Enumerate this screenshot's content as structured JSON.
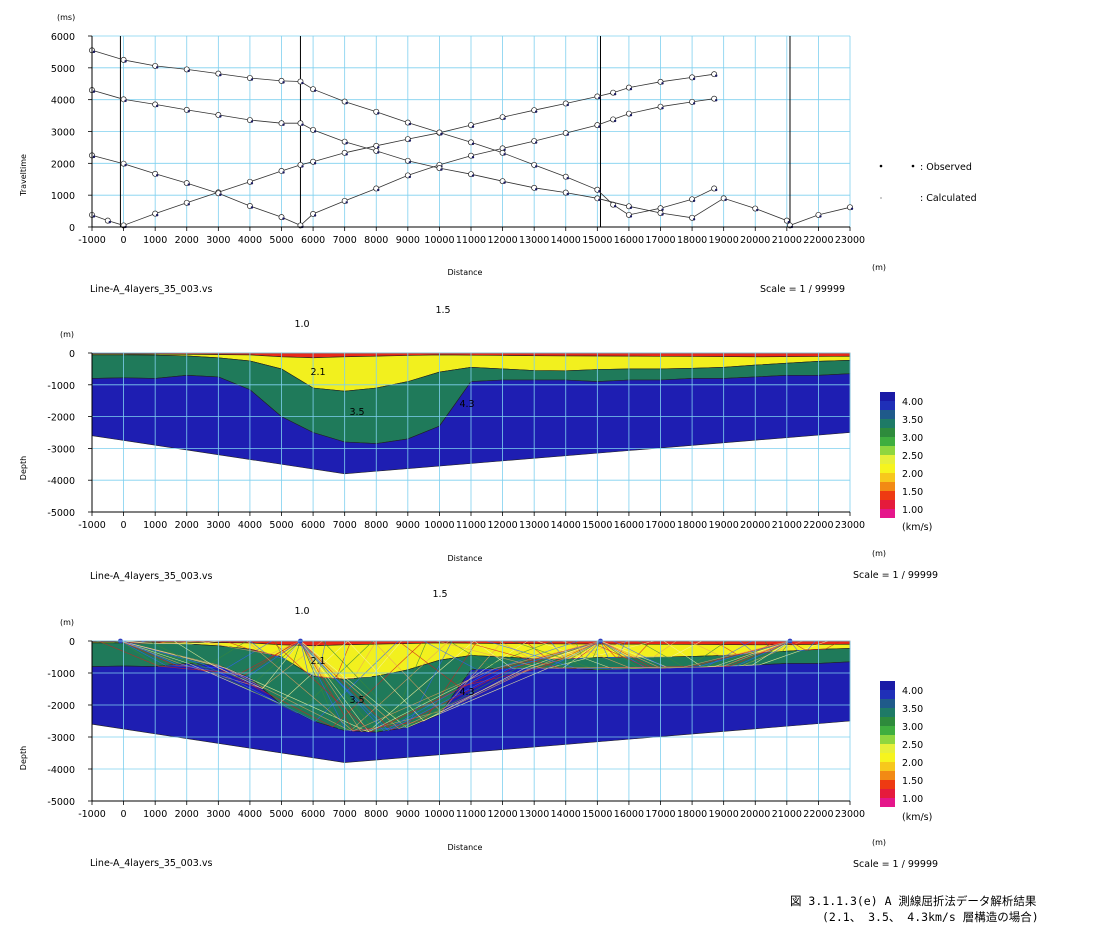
{
  "chart_data": [
    {
      "type": "scatter",
      "ylabel": "Traveltime",
      "yunit": "(ms)",
      "xlabel": "Distance",
      "xunit": "(m)",
      "xlim": [
        -1000,
        23000
      ],
      "ylim": [
        0,
        6000
      ],
      "xticks": [
        -1000,
        0,
        1000,
        2000,
        3000,
        4000,
        5000,
        6000,
        7000,
        8000,
        9000,
        10000,
        11000,
        12000,
        13000,
        14000,
        15000,
        16000,
        17000,
        18000,
        19000,
        20000,
        21000,
        22000,
        23000
      ],
      "yticks": [
        0,
        1000,
        2000,
        3000,
        4000,
        5000,
        6000
      ],
      "grid": true,
      "legend": {
        "position": "right",
        "observed": ": Observed",
        "calculated": ": Calculated"
      },
      "filename": "Line-A_4layers_35_003.vs",
      "scale": "Scale = 1 / 99999",
      "shots": [
        -100,
        5600,
        15100,
        21100
      ],
      "series": [
        {
          "shot": -100,
          "x": [
            -1000,
            -500,
            0,
            1000,
            2000,
            3000,
            4000,
            5000,
            5600,
            6000,
            7000,
            8000,
            9000,
            10000,
            11000,
            12000,
            13000,
            14000,
            15000,
            15500,
            16000,
            17000,
            18000,
            18700
          ],
          "y": [
            380,
            200,
            50,
            420,
            760,
            1090,
            1420,
            1760,
            1950,
            2050,
            2330,
            2550,
            2760,
            2960,
            3200,
            3450,
            3670,
            3880,
            4100,
            4220,
            4380,
            4560,
            4700,
            4800
          ]
        },
        {
          "shot": 5600,
          "x": [
            -1000,
            0,
            1000,
            2000,
            3000,
            4000,
            5000,
            5600,
            6000,
            7000,
            8000,
            9000,
            10000,
            11000,
            12000,
            13000,
            14000,
            15000,
            15500,
            16000,
            17000,
            18000,
            18700
          ],
          "y": [
            2250,
            1990,
            1670,
            1380,
            1060,
            660,
            310,
            50,
            410,
            820,
            1210,
            1620,
            1950,
            2240,
            2470,
            2700,
            2950,
            3200,
            3380,
            3560,
            3780,
            3930,
            4030
          ]
        },
        {
          "shot": 15100,
          "x": [
            -1000,
            0,
            1000,
            2000,
            3000,
            4000,
            5000,
            5600,
            6000,
            7000,
            8000,
            9000,
            10000,
            11000,
            12000,
            13000,
            14000,
            15000,
            15500,
            16000,
            17000,
            18000,
            18700
          ],
          "y": [
            5550,
            5250,
            5060,
            4950,
            4820,
            4680,
            4590,
            4570,
            4330,
            3940,
            3620,
            3280,
            2970,
            2660,
            2330,
            1950,
            1580,
            1170,
            700,
            380,
            590,
            870,
            1210
          ]
        },
        {
          "shot": 21100,
          "x": [
            -1000,
            0,
            1000,
            2000,
            3000,
            4000,
            5000,
            5600,
            6000,
            7000,
            8000,
            9000,
            10000,
            11000,
            12000,
            13000,
            14000,
            15000,
            16000,
            17000,
            18000,
            19000,
            20000,
            21000,
            21100,
            22000,
            23000
          ],
          "y": [
            4300,
            4010,
            3850,
            3680,
            3520,
            3360,
            3260,
            3260,
            3050,
            2680,
            2390,
            2080,
            1850,
            1660,
            1440,
            1230,
            1080,
            900,
            650,
            440,
            290,
            900,
            580,
            200,
            50,
            380,
            620
          ]
        }
      ]
    },
    {
      "type": "area",
      "ylabel": "Depth",
      "yunit": "(m)",
      "xlabel": "Distance",
      "xunit": "(m)",
      "xlim": [
        -1000,
        23000
      ],
      "ylim": [
        -5000,
        0
      ],
      "xticks": [
        -1000,
        0,
        1000,
        2000,
        3000,
        4000,
        5000,
        6000,
        7000,
        8000,
        9000,
        10000,
        11000,
        12000,
        13000,
        14000,
        15000,
        16000,
        17000,
        18000,
        19000,
        20000,
        21000,
        22000,
        23000
      ],
      "yticks": [
        0,
        -1000,
        -2000,
        -3000,
        -4000,
        -5000
      ],
      "grid": true,
      "filename": "Line-A_4layers_35_003.vs",
      "scale": "Scale = 1 / 99999",
      "velocity_unit": "(km/s)",
      "layer_labels": {
        "v10": "1.0",
        "v15": "1.5",
        "v21": "2.1",
        "v35": "3.5",
        "v43": "4.3"
      },
      "colorbar": {
        "ticks": [
          "4.00",
          "3.50",
          "3.00",
          "2.50",
          "2.00",
          "1.50",
          "1.00"
        ],
        "colors": [
          "#1a1aa6",
          "#1f2fb8",
          "#1f5a8a",
          "#1e7a66",
          "#2e8b3c",
          "#3fae3f",
          "#8fd63f",
          "#e6f03a",
          "#f6f41e",
          "#f7c81c",
          "#f28a14",
          "#ee3a12",
          "#e51b3c",
          "#e5168a"
        ]
      },
      "layers": [
        {
          "velocity": 1.5,
          "color": "#e8291a",
          "bottom_x": [
            -1000,
            0,
            2000,
            4000,
            5000,
            6000,
            7000,
            8000,
            9000,
            10000,
            12000,
            14000,
            16000,
            18000,
            20000,
            22000,
            23000
          ],
          "bottom_y": [
            -30,
            -30,
            -40,
            -60,
            -120,
            -150,
            -120,
            -100,
            -80,
            -60,
            -80,
            -90,
            -100,
            -110,
            -120,
            -110,
            -100
          ]
        },
        {
          "velocity": 2.1,
          "color": "#f2f01e",
          "bottom_x": [
            -1000,
            0,
            1000,
            2000,
            3000,
            4000,
            5000,
            6000,
            7000,
            8000,
            9000,
            10000,
            11000,
            12000,
            13000,
            14000,
            15000,
            16000,
            17000,
            18000,
            19000,
            20000,
            21000,
            22000,
            23000
          ],
          "bottom_y": [
            -60,
            -60,
            -70,
            -90,
            -150,
            -250,
            -500,
            -1100,
            -1200,
            -1100,
            -900,
            -600,
            -450,
            -500,
            -550,
            -560,
            -520,
            -500,
            -500,
            -480,
            -450,
            -380,
            -320,
            -260,
            -230
          ]
        },
        {
          "velocity": 3.5,
          "color": "#1f7a5a",
          "bottom_x": [
            -1000,
            0,
            1000,
            2000,
            3000,
            4000,
            5000,
            6000,
            7000,
            8000,
            9000,
            10000,
            10500,
            11000,
            12000,
            13000,
            14000,
            15000,
            16000,
            17000,
            18000,
            19000,
            20000,
            21000,
            22000,
            23000
          ],
          "bottom_y": [
            -800,
            -780,
            -800,
            -700,
            -750,
            -1150,
            -2000,
            -2500,
            -2800,
            -2850,
            -2700,
            -2300,
            -1600,
            -900,
            -850,
            -850,
            -850,
            -900,
            -850,
            -850,
            -800,
            -800,
            -750,
            -700,
            -700,
            -650
          ]
        },
        {
          "velocity": 4.3,
          "color": "#1e1eb2",
          "bottom_x": [
            -1000,
            7000,
            23000
          ],
          "bottom_y": [
            -2600,
            -3800,
            -2500
          ]
        }
      ]
    },
    {
      "type": "area",
      "ylabel": "Depth",
      "yunit": "(m)",
      "xlabel": "Distance",
      "xunit": "(m)",
      "xlim": [
        -1000,
        23000
      ],
      "ylim": [
        -5000,
        0
      ],
      "xticks": [
        -1000,
        0,
        1000,
        2000,
        3000,
        4000,
        5000,
        6000,
        7000,
        8000,
        9000,
        10000,
        11000,
        12000,
        13000,
        14000,
        15000,
        16000,
        17000,
        18000,
        19000,
        20000,
        21000,
        22000,
        23000
      ],
      "yticks": [
        0,
        -1000,
        -2000,
        -3000,
        -4000,
        -5000
      ],
      "grid": true,
      "filename": "Line-A_4layers_35_003.vs",
      "scale": "Scale = 1 / 99999",
      "velocity_unit": "(km/s)",
      "layer_labels": {
        "v10": "1.0",
        "v15": "1.5",
        "v21": "2.1",
        "v35": "3.5",
        "v43": "4.3"
      },
      "raypaths": true,
      "shots": [
        -100,
        5600,
        15100,
        21100
      ]
    }
  ],
  "caption": {
    "line1": "図 3.1.1.3(e)  A 測線屈折法データ解析結果",
    "line2": "(2.1、 3.5、 4.3km/s 層構造の場合)"
  }
}
